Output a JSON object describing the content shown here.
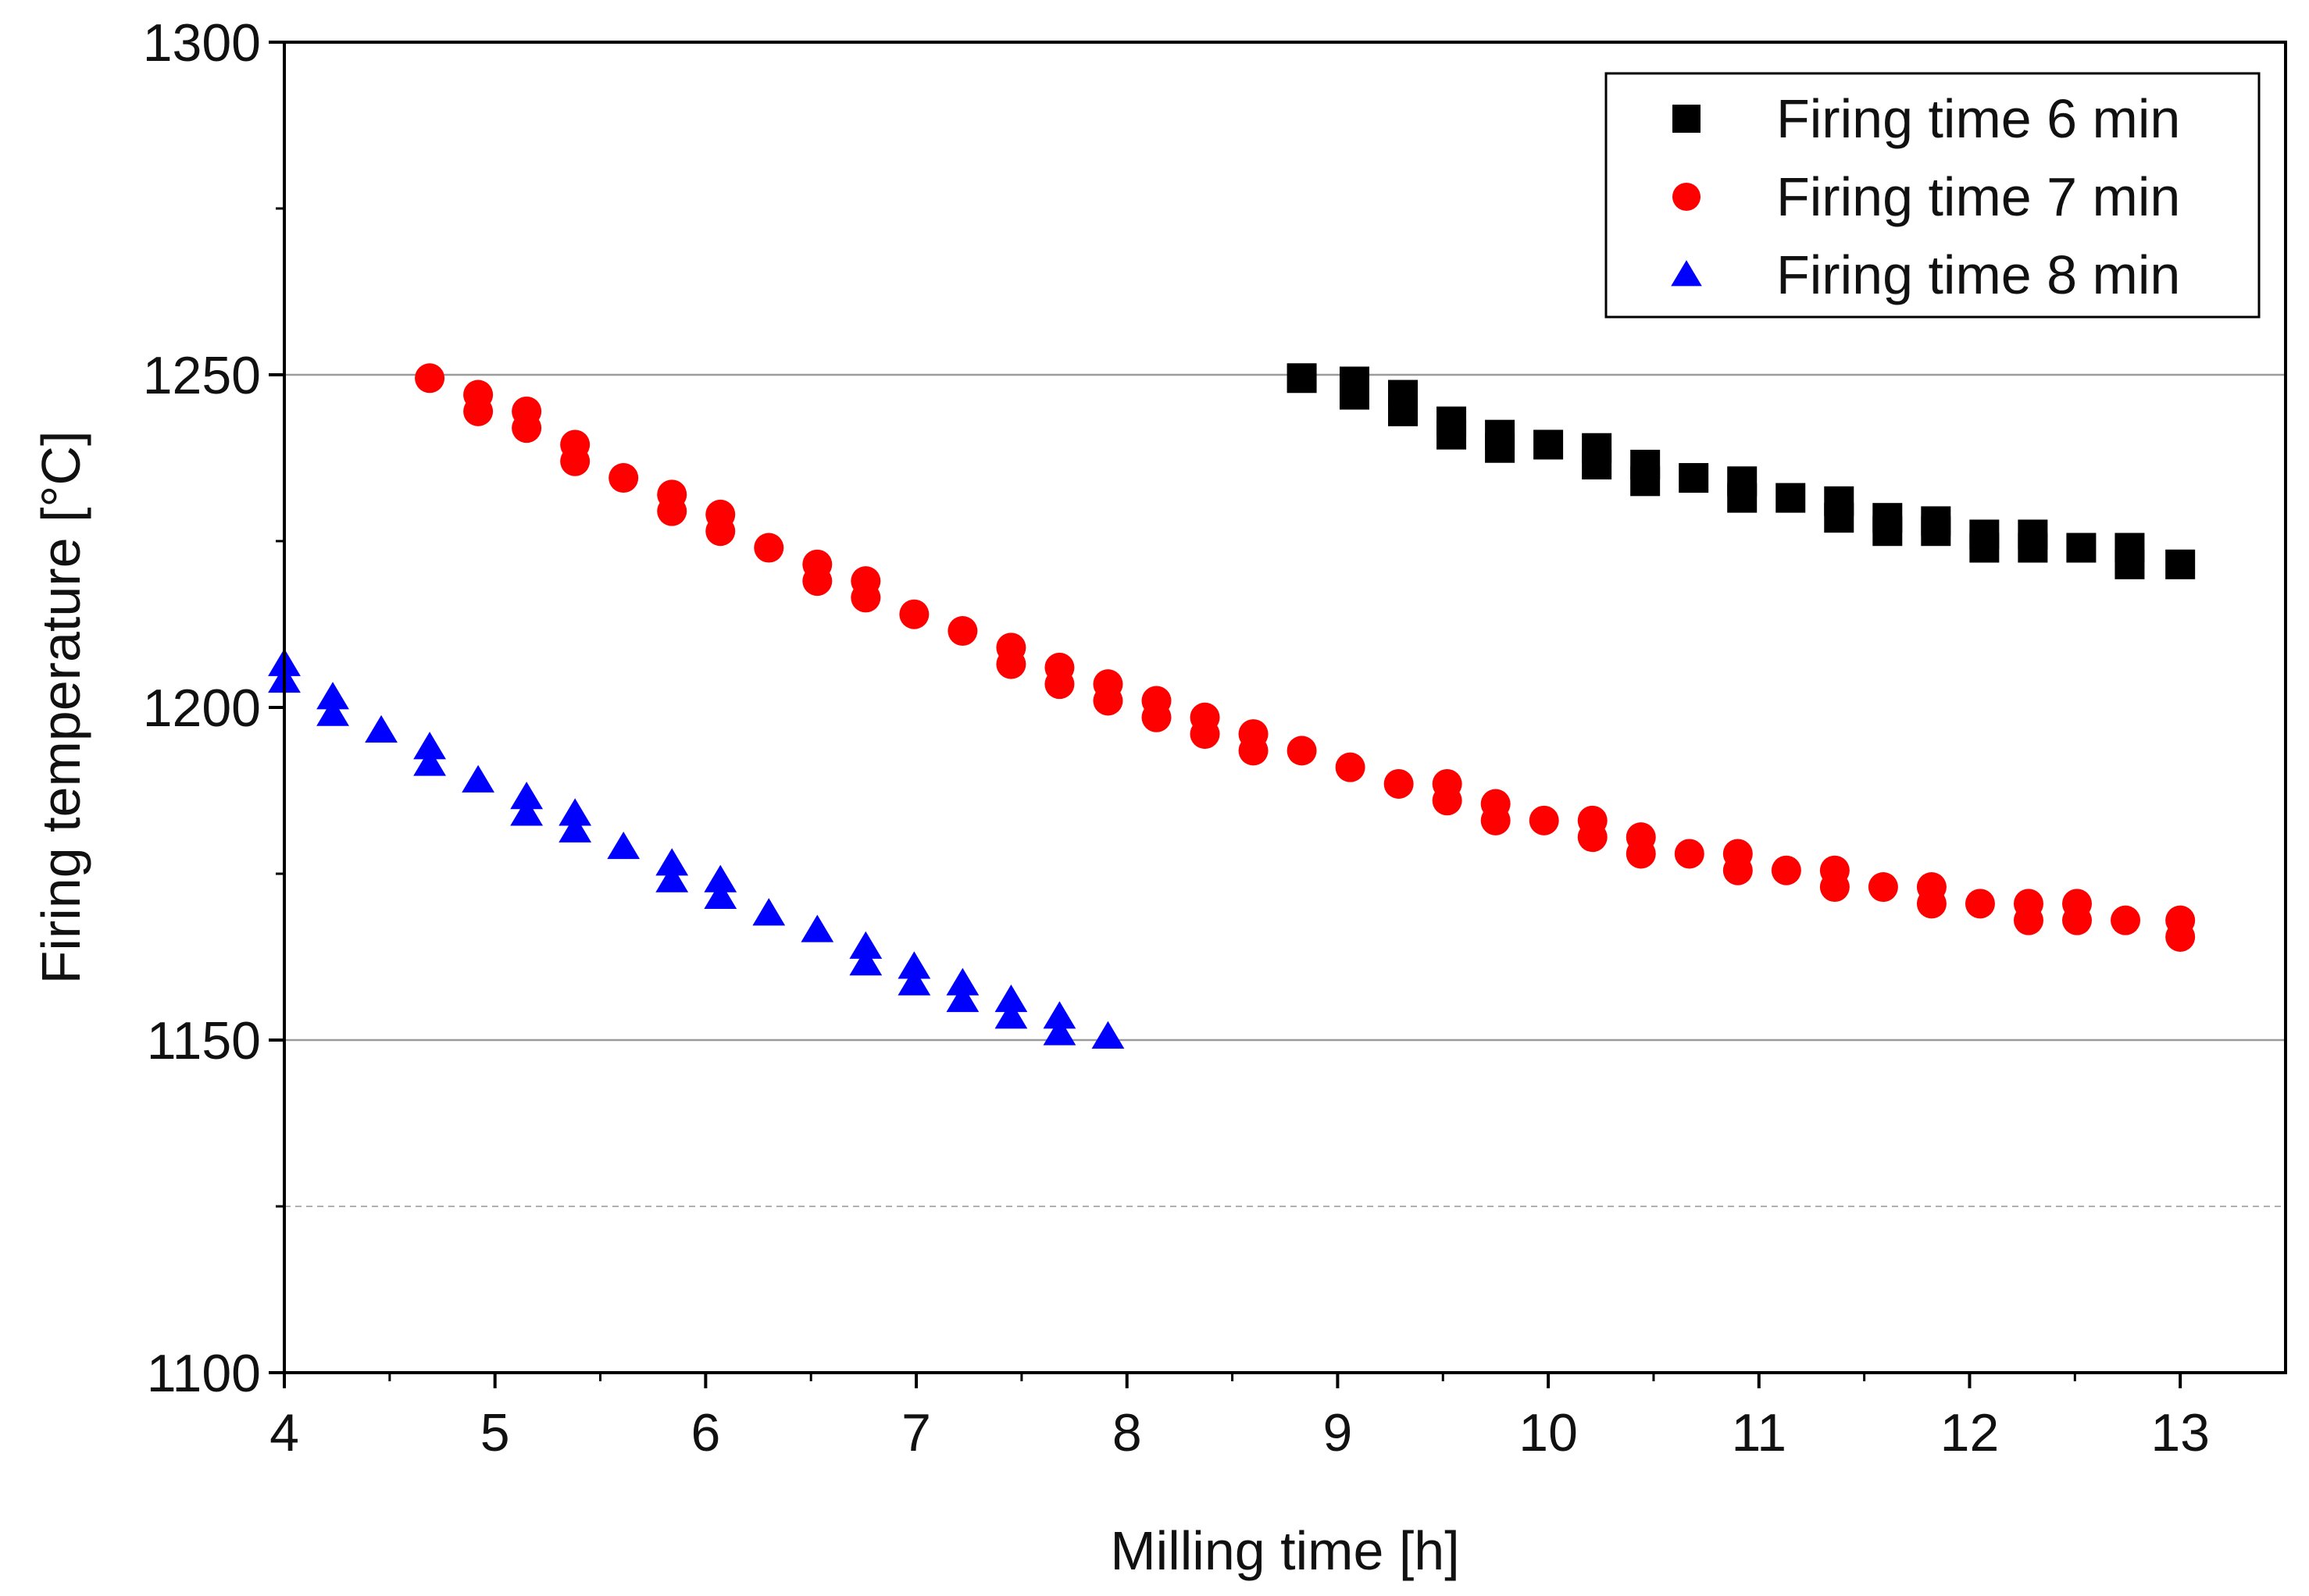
{
  "chart_data": {
    "type": "scatter",
    "title": "",
    "xlabel": "Milling time [h]",
    "ylabel": "Firing temperature [°C]",
    "xlim": [
      4,
      13.5
    ],
    "ylim": [
      1100,
      1300
    ],
    "xticks": [
      4,
      5,
      6,
      7,
      8,
      9,
      10,
      11,
      12,
      13
    ],
    "yticks": [
      1100,
      1150,
      1200,
      1250,
      1300
    ],
    "gridlines_y": [
      {
        "value": 1250,
        "style": "solid"
      },
      {
        "value": 1150,
        "style": "solid"
      },
      {
        "value": 1125,
        "style": "dashed"
      }
    ],
    "legend_position": "top-right",
    "series": [
      {
        "name": "Firing time 6 min",
        "marker": "square",
        "color": "#000000",
        "points": [
          [
            8.83,
            1249.5
          ],
          [
            9.08,
            1249
          ],
          [
            9.08,
            1247
          ],
          [
            9.31,
            1247
          ],
          [
            9.31,
            1244.5
          ],
          [
            9.54,
            1243
          ],
          [
            9.54,
            1241
          ],
          [
            9.77,
            1241
          ],
          [
            9.77,
            1239
          ],
          [
            10.0,
            1239.5
          ],
          [
            10.23,
            1239
          ],
          [
            10.23,
            1236.5
          ],
          [
            10.46,
            1236.5
          ],
          [
            10.46,
            1234
          ],
          [
            10.69,
            1234.5
          ],
          [
            10.92,
            1234
          ],
          [
            10.92,
            1231.5
          ],
          [
            11.15,
            1231.5
          ],
          [
            11.38,
            1231
          ],
          [
            11.38,
            1228.5
          ],
          [
            11.61,
            1228.5
          ],
          [
            11.61,
            1226.5
          ],
          [
            11.84,
            1228
          ],
          [
            11.84,
            1226.5
          ],
          [
            12.07,
            1226
          ],
          [
            12.07,
            1224
          ],
          [
            12.3,
            1226
          ],
          [
            12.3,
            1224
          ],
          [
            12.53,
            1224
          ],
          [
            12.76,
            1224
          ],
          [
            12.76,
            1221.5
          ],
          [
            13.0,
            1221.5
          ]
        ]
      },
      {
        "name": "Firing time 7 min",
        "marker": "circle",
        "color": "#ff0000",
        "points": [
          [
            4.69,
            1249.5
          ],
          [
            4.92,
            1247
          ],
          [
            4.92,
            1244.5
          ],
          [
            5.15,
            1244.5
          ],
          [
            5.15,
            1242
          ],
          [
            5.38,
            1239.5
          ],
          [
            5.38,
            1237
          ],
          [
            5.61,
            1234.5
          ],
          [
            5.84,
            1232
          ],
          [
            5.84,
            1229.5
          ],
          [
            6.07,
            1229
          ],
          [
            6.07,
            1226.5
          ],
          [
            6.3,
            1224
          ],
          [
            6.53,
            1221.5
          ],
          [
            6.53,
            1219
          ],
          [
            6.76,
            1219
          ],
          [
            6.76,
            1216.5
          ],
          [
            6.99,
            1214
          ],
          [
            7.22,
            1211.5
          ],
          [
            7.45,
            1209
          ],
          [
            7.45,
            1206.5
          ],
          [
            7.68,
            1206
          ],
          [
            7.68,
            1203.5
          ],
          [
            7.91,
            1203.5
          ],
          [
            7.91,
            1201
          ],
          [
            8.14,
            1201
          ],
          [
            8.14,
            1198.5
          ],
          [
            8.37,
            1198.5
          ],
          [
            8.37,
            1196
          ],
          [
            8.6,
            1196
          ],
          [
            8.6,
            1193.5
          ],
          [
            8.83,
            1193.5
          ],
          [
            9.06,
            1191
          ],
          [
            9.29,
            1188.5
          ],
          [
            9.52,
            1188.5
          ],
          [
            9.52,
            1186
          ],
          [
            9.75,
            1185.5
          ],
          [
            9.75,
            1183
          ],
          [
            9.98,
            1183
          ],
          [
            10.21,
            1183
          ],
          [
            10.21,
            1180.5
          ],
          [
            10.44,
            1180.5
          ],
          [
            10.44,
            1178
          ],
          [
            10.67,
            1178
          ],
          [
            10.9,
            1178
          ],
          [
            10.9,
            1175.5
          ],
          [
            11.13,
            1175.5
          ],
          [
            11.36,
            1175.5
          ],
          [
            11.36,
            1173
          ],
          [
            11.59,
            1173
          ],
          [
            11.82,
            1173
          ],
          [
            11.82,
            1170.5
          ],
          [
            12.05,
            1170.5
          ],
          [
            12.28,
            1170.5
          ],
          [
            12.28,
            1168
          ],
          [
            12.51,
            1170.5
          ],
          [
            12.51,
            1168
          ],
          [
            12.74,
            1168
          ],
          [
            13.0,
            1168
          ],
          [
            13.0,
            1165.5
          ]
        ]
      },
      {
        "name": "Firing time 8 min",
        "marker": "triangle",
        "color": "#0000ff",
        "points": [
          [
            4.0,
            1206.5
          ],
          [
            4.0,
            1204
          ],
          [
            4.23,
            1201.5
          ],
          [
            4.23,
            1199
          ],
          [
            4.46,
            1196.5
          ],
          [
            4.69,
            1194
          ],
          [
            4.69,
            1191.5
          ],
          [
            4.92,
            1189
          ],
          [
            5.15,
            1186.5
          ],
          [
            5.15,
            1184
          ],
          [
            5.38,
            1184
          ],
          [
            5.38,
            1181.5
          ],
          [
            5.61,
            1179
          ],
          [
            5.84,
            1176.5
          ],
          [
            5.84,
            1174
          ],
          [
            6.07,
            1174
          ],
          [
            6.07,
            1171.5
          ],
          [
            6.3,
            1169
          ],
          [
            6.53,
            1166.5
          ],
          [
            6.76,
            1164
          ],
          [
            6.76,
            1161.5
          ],
          [
            6.99,
            1161
          ],
          [
            6.99,
            1158.5
          ],
          [
            7.22,
            1158.5
          ],
          [
            7.22,
            1156
          ],
          [
            7.45,
            1156
          ],
          [
            7.45,
            1153.5
          ],
          [
            7.68,
            1153.5
          ],
          [
            7.68,
            1151
          ],
          [
            7.91,
            1150.5
          ]
        ]
      }
    ]
  }
}
